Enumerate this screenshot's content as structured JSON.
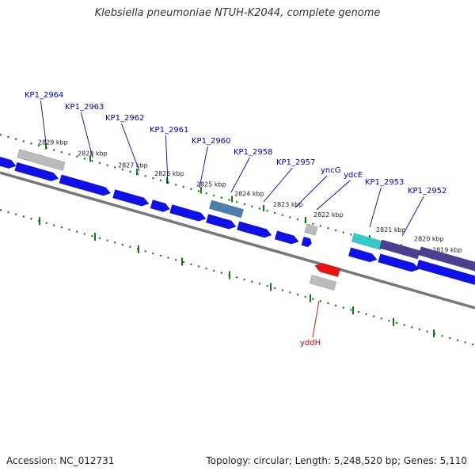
{
  "title": "Klebsiella pneumoniae NTUH-K2044, complete genome",
  "footer": {
    "accession": "Accession: NC_012731",
    "topology": "Topology: circular; Length: 5,248,520 bp; Genes: 5,110"
  },
  "colors": {
    "gene_forward": "#1010e8",
    "pseudo_grey": "#bbbbbb",
    "highlight_steel": "#4a7fb0",
    "highlight_cyan": "#33cccc",
    "highlight_purple": "#4b3f8f",
    "rna_red": "#ee1111",
    "label_blue": "#0000bb",
    "label_red": "#cc0000",
    "ruler_green": "#117711",
    "backbone": "#777777"
  },
  "kbp_ticks": [
    "2829 kbp",
    "2828 kbp",
    "2827 kbp",
    "2826 kbp",
    "2825 kbp",
    "2824 kbp",
    "2823 kbp",
    "2822 kbp",
    "2821 kbp",
    "2820 kbp",
    "2819 kbp"
  ],
  "gene_labels": [
    "KP1_2964",
    "KP1_2963",
    "KP1_2962",
    "KP1_2961",
    "KP1_2960",
    "KP1_2958",
    "KP1_2957",
    "yncG",
    "ydcE",
    "KP1_2953",
    "KP1_2952"
  ],
  "reverse_label": "yddH"
}
